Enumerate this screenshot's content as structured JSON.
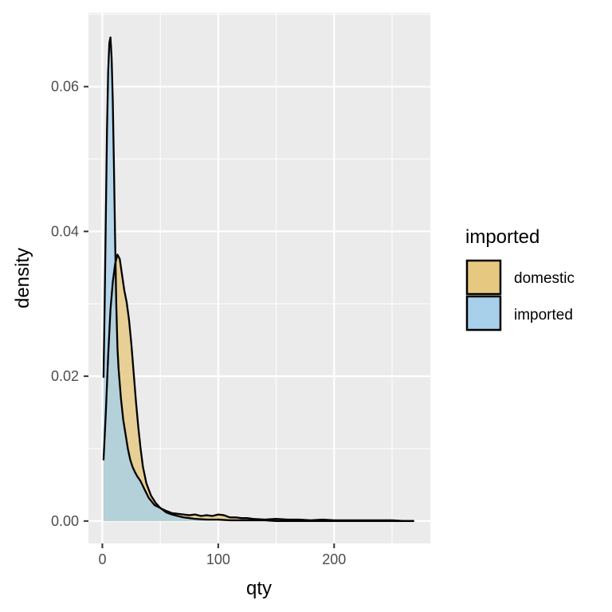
{
  "chart_data": {
    "type": "area",
    "subtype": "density",
    "xlabel": "qty",
    "ylabel": "density",
    "xlim": [
      -12,
      283
    ],
    "ylim": [
      -0.0031,
      0.0702
    ],
    "x_ticks": [
      0,
      100,
      200
    ],
    "x_tick_labels": [
      "0",
      "100",
      "200"
    ],
    "y_ticks": [
      0.0,
      0.02,
      0.04,
      0.06
    ],
    "y_tick_labels": [
      "0.00",
      "0.02",
      "0.04",
      "0.06"
    ],
    "grid": true,
    "panel_background": "#ebebeb",
    "grid_color": "#ffffff",
    "legend": {
      "title": "imported",
      "placement": "right",
      "entries": [
        {
          "label": "domestic",
          "color": "#e6c880"
        },
        {
          "label": "imported",
          "color": "#a8d0ea"
        }
      ]
    },
    "series": [
      {
        "name": "domestic",
        "color": "#e6c880",
        "opacity": 0.8,
        "x": [
          1,
          3,
          5,
          7,
          9,
          11,
          13,
          15,
          17,
          19,
          21,
          23,
          25,
          27,
          29,
          31,
          33,
          35,
          38,
          42,
          46,
          50,
          55,
          60,
          65,
          70,
          75,
          80,
          85,
          90,
          95,
          100,
          105,
          110,
          115,
          120,
          125,
          130,
          140,
          150,
          160,
          170,
          180,
          190,
          200,
          210,
          220,
          230,
          240,
          250,
          260,
          269
        ],
        "y": [
          0.0084,
          0.015,
          0.0228,
          0.0292,
          0.033,
          0.0355,
          0.0368,
          0.0362,
          0.034,
          0.0318,
          0.0302,
          0.0278,
          0.0245,
          0.0205,
          0.0165,
          0.013,
          0.01,
          0.0075,
          0.0052,
          0.0035,
          0.0025,
          0.0018,
          0.0014,
          0.0011,
          0.001,
          0.0009,
          0.0008,
          0.0009,
          0.0007,
          0.0008,
          0.0007,
          0.0009,
          0.0008,
          0.0005,
          0.0005,
          0.0004,
          0.0004,
          0.0003,
          0.0002,
          0.0003,
          0.0002,
          0.0002,
          0.0001,
          0.0002,
          0.0001,
          0.0001,
          0.0001,
          0.0001,
          0.0001,
          0.0001,
          0.0,
          0.0
        ]
      },
      {
        "name": "imported",
        "color": "#a8d0ea",
        "opacity": 0.8,
        "x": [
          1,
          2,
          3,
          4,
          5,
          6,
          7,
          8,
          9,
          10,
          11,
          12,
          13,
          14,
          15,
          16,
          17,
          18,
          20,
          22,
          24,
          26,
          28,
          30,
          33,
          36,
          40,
          45,
          50,
          55,
          60,
          65,
          70,
          75,
          80,
          90,
          100,
          110,
          120,
          130,
          140,
          150,
          160,
          180,
          200,
          220,
          240,
          260,
          269
        ],
        "y": [
          0.0198,
          0.03,
          0.042,
          0.054,
          0.062,
          0.066,
          0.0668,
          0.064,
          0.058,
          0.049,
          0.039,
          0.03,
          0.024,
          0.021,
          0.019,
          0.017,
          0.0155,
          0.014,
          0.012,
          0.01,
          0.0085,
          0.0075,
          0.0068,
          0.0062,
          0.0055,
          0.0045,
          0.0032,
          0.0022,
          0.0018,
          0.0012,
          0.0009,
          0.0007,
          0.0005,
          0.0004,
          0.0003,
          0.0002,
          0.0002,
          0.0001,
          0.0001,
          0.0001,
          0.0001,
          0.0,
          0.0,
          0.0,
          0.0,
          0.0,
          0.0,
          0.0,
          0.0
        ]
      }
    ]
  }
}
